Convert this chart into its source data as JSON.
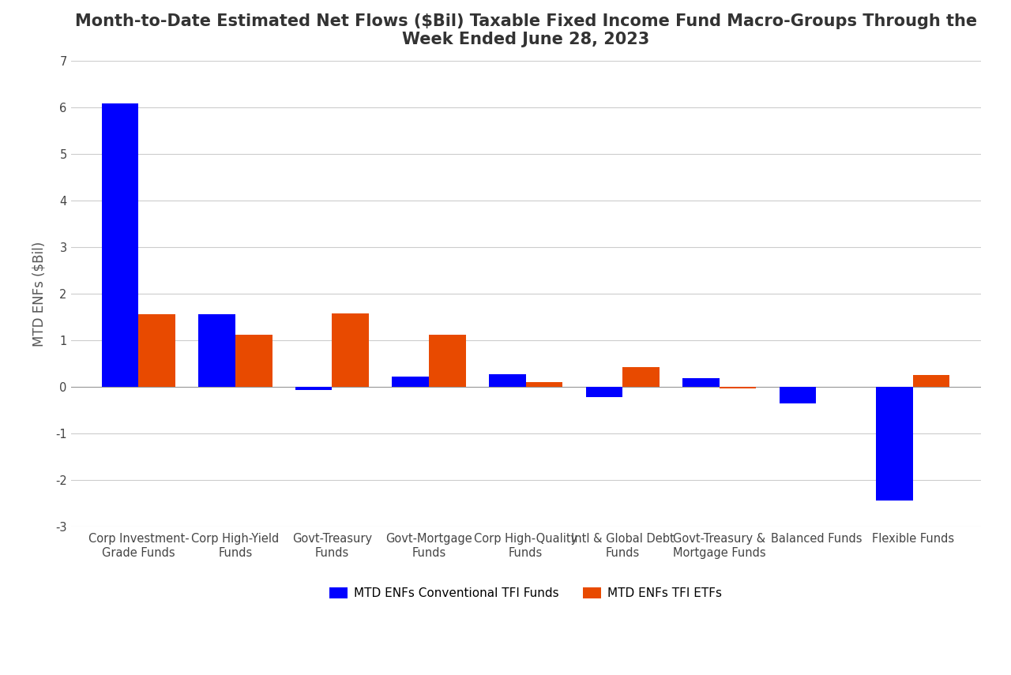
{
  "title": "Month-to-Date Estimated Net Flows ($Bil) Taxable Fixed Income Fund Macro-Groups Through the\nWeek Ended June 28, 2023",
  "ylabel": "MTD ENFs ($Bil)",
  "categories": [
    "Corp Investment-\nGrade Funds",
    "Corp High-Yield\nFunds",
    "Govt-Treasury\nFunds",
    "Govt-Mortgage\nFunds",
    "Corp High-Quality\nFunds",
    "Intl & Global Debt\nFunds",
    "Govt-Treasury &\nMortgage Funds",
    "Balanced Funds",
    "Flexible Funds"
  ],
  "conventional": [
    6.08,
    1.56,
    -0.07,
    0.22,
    0.27,
    -0.22,
    0.18,
    -0.35,
    -2.45
  ],
  "etf": [
    1.56,
    1.12,
    1.57,
    1.12,
    0.1,
    0.43,
    -0.04,
    0.0,
    0.25
  ],
  "blue_color": "#0000FF",
  "orange_color": "#E84A00",
  "ylim_min": -3,
  "ylim_max": 7,
  "yticks": [
    -3,
    -2,
    -1,
    0,
    1,
    2,
    3,
    4,
    5,
    6,
    7
  ],
  "legend_label_blue": "MTD ENFs Conventional TFI Funds",
  "legend_label_orange": "MTD ENFs TFI ETFs",
  "background_color": "#FFFFFF",
  "grid_color": "#CCCCCC",
  "title_fontsize": 15,
  "axis_label_fontsize": 12,
  "tick_fontsize": 10.5,
  "bar_width": 0.38
}
